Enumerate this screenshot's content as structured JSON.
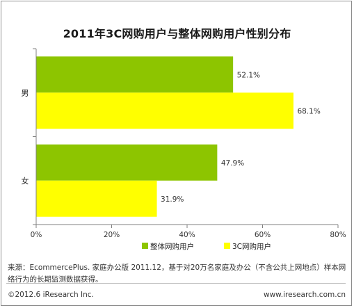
{
  "chart_data": {
    "type": "bar",
    "orientation": "horizontal",
    "title": "2011年3C网购用户与整体网购用户性别分布",
    "categories": [
      "男",
      "女"
    ],
    "series": [
      {
        "name": "整体网购用户",
        "color": "#8dc500",
        "values": [
          52.1,
          47.9
        ],
        "labels": [
          "52.1%",
          "47.9%"
        ]
      },
      {
        "name": "3C网购用户",
        "color": "#ffff00",
        "values": [
          68.1,
          31.9
        ],
        "labels": [
          "68.1%",
          "31.9%"
        ]
      }
    ],
    "xlim": [
      0,
      80
    ],
    "x_ticks": [
      "0%",
      "20%",
      "40%",
      "60%",
      "80%"
    ],
    "grid": false,
    "legend_position": "bottom"
  },
  "source_text": "来源：EcommercePlus. 家庭办公版 2011.12，基于对20万名家庭及办公（不含公共上网地点）样本网络行为的长期监测数据获得。",
  "copyright": "©2012.6 iResearch Inc.",
  "website": "www.iresearch.com.cn"
}
